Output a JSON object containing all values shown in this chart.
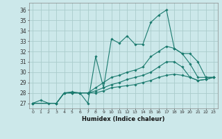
{
  "xlabel": "Humidex (Indice chaleur)",
  "bg_color": "#cce8ea",
  "grid_color": "#aacccc",
  "line_color": "#1a7a6e",
  "xlim": [
    -0.5,
    23.5
  ],
  "ylim": [
    26.5,
    36.7
  ],
  "xticks": [
    0,
    1,
    2,
    3,
    4,
    5,
    6,
    7,
    8,
    9,
    10,
    11,
    12,
    13,
    14,
    15,
    16,
    17,
    18,
    19,
    20,
    21,
    22,
    23
  ],
  "yticks": [
    27,
    28,
    29,
    30,
    31,
    32,
    33,
    34,
    35,
    36
  ],
  "lines": [
    {
      "x": [
        0,
        1,
        2,
        3,
        4,
        5,
        6,
        7,
        8,
        9,
        10,
        11,
        12,
        13,
        14,
        15,
        16,
        17,
        18,
        19,
        20,
        21,
        22,
        23
      ],
      "y": [
        27,
        27.3,
        27,
        27,
        28,
        28.1,
        28,
        27,
        31.5,
        28.5,
        33.2,
        32.8,
        33.5,
        32.7,
        32.7,
        34.8,
        35.5,
        36,
        32.3,
        31.8,
        30.8,
        29.5,
        29.5,
        29.5
      ]
    },
    {
      "x": [
        0,
        3,
        4,
        5,
        6,
        7,
        8,
        9,
        10,
        11,
        12,
        13,
        14,
        15,
        16,
        17,
        18,
        19,
        20,
        21,
        22,
        23
      ],
      "y": [
        27,
        27,
        28,
        28,
        28,
        28,
        28.5,
        29,
        29.5,
        29.7,
        30,
        30.2,
        30.5,
        31.5,
        32,
        32.5,
        32.3,
        31.8,
        31.8,
        31,
        29.5,
        29.5
      ]
    },
    {
      "x": [
        0,
        3,
        4,
        5,
        6,
        7,
        8,
        9,
        10,
        11,
        12,
        13,
        14,
        15,
        16,
        17,
        18,
        19,
        20,
        21,
        22,
        23
      ],
      "y": [
        27,
        27,
        28,
        28,
        28,
        28,
        28.2,
        28.5,
        28.8,
        29,
        29.3,
        29.5,
        29.7,
        30,
        30.5,
        31,
        31,
        30.5,
        29.5,
        29.2,
        29.3,
        29.5
      ]
    },
    {
      "x": [
        0,
        3,
        4,
        5,
        6,
        7,
        8,
        9,
        10,
        11,
        12,
        13,
        14,
        15,
        16,
        17,
        18,
        19,
        20,
        21,
        22,
        23
      ],
      "y": [
        27,
        27,
        28,
        28,
        28,
        28,
        28,
        28.2,
        28.5,
        28.6,
        28.7,
        28.8,
        29,
        29.2,
        29.5,
        29.7,
        29.8,
        29.7,
        29.5,
        29.2,
        29.3,
        29.5
      ]
    }
  ]
}
